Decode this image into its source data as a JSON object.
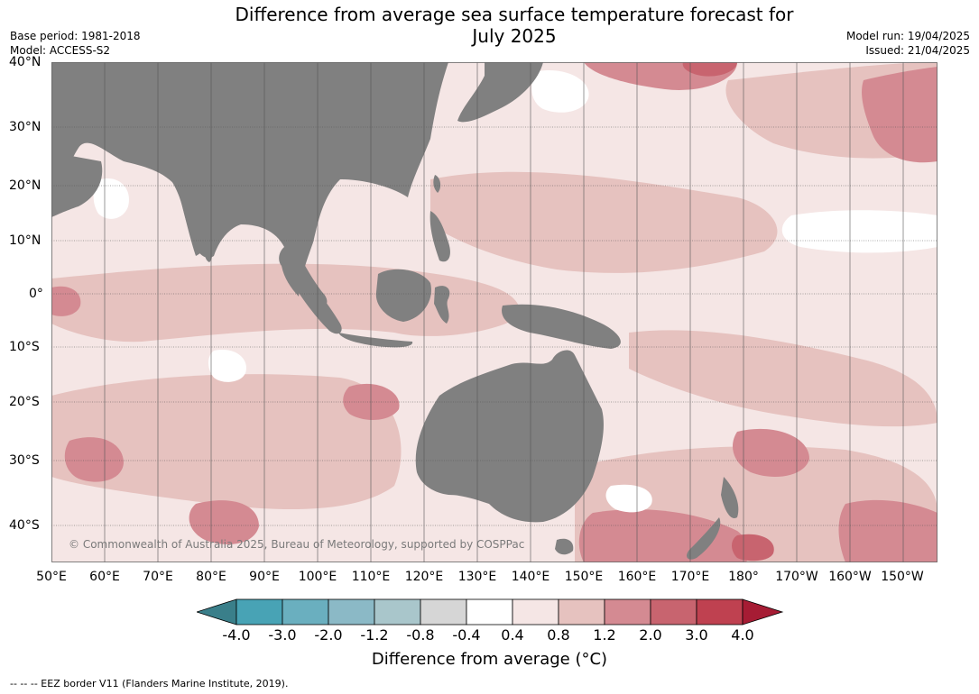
{
  "title_line1": "Difference from average sea surface temperature forecast for",
  "title_line2": "July 2025",
  "left_info": {
    "base_period": "Base period: 1981-2018",
    "model": "Model: ACCESS-S2"
  },
  "right_info": {
    "model_run": "Model run: 19/04/2025",
    "issued": "Issued: 21/04/2025"
  },
  "lat_labels": [
    "40°N",
    "30°N",
    "20°N",
    "10°N",
    "0°",
    "10°S",
    "20°S",
    "30°S",
    "40°S"
  ],
  "lon_labels": [
    "50°E",
    "60°E",
    "70°E",
    "80°E",
    "90°E",
    "100°E",
    "110°E",
    "120°E",
    "130°E",
    "140°E",
    "150°E",
    "160°E",
    "170°E",
    "180°",
    "170°W",
    "160°W",
    "150°W"
  ],
  "copyright": "© Commonwealth of Australia 2025, Bureau of Meteorology, supported by COSPPac",
  "colorbar": {
    "ticks": [
      "-4.0",
      "-3.0",
      "-2.0",
      "-1.2",
      "-0.8",
      "-0.4",
      "0.4",
      "0.8",
      "1.2",
      "2.0",
      "3.0",
      "4.0"
    ],
    "colors": [
      "#3a7f8a",
      "#48a3b5",
      "#6aafbf",
      "#8bb9c6",
      "#a9c6cb",
      "#d6d6d6",
      "#ffffff",
      "#f5e6e5",
      "#e6c2bf",
      "#d48a92",
      "#c8646f",
      "#bf4150",
      "#a61c34"
    ],
    "label": "Difference from average (°C)"
  },
  "footnote": "-- -- -- EEZ border V11 (Flanders Marine Institute, 2019).",
  "palette": {
    "land": "#808080",
    "gridline": "#555555"
  }
}
